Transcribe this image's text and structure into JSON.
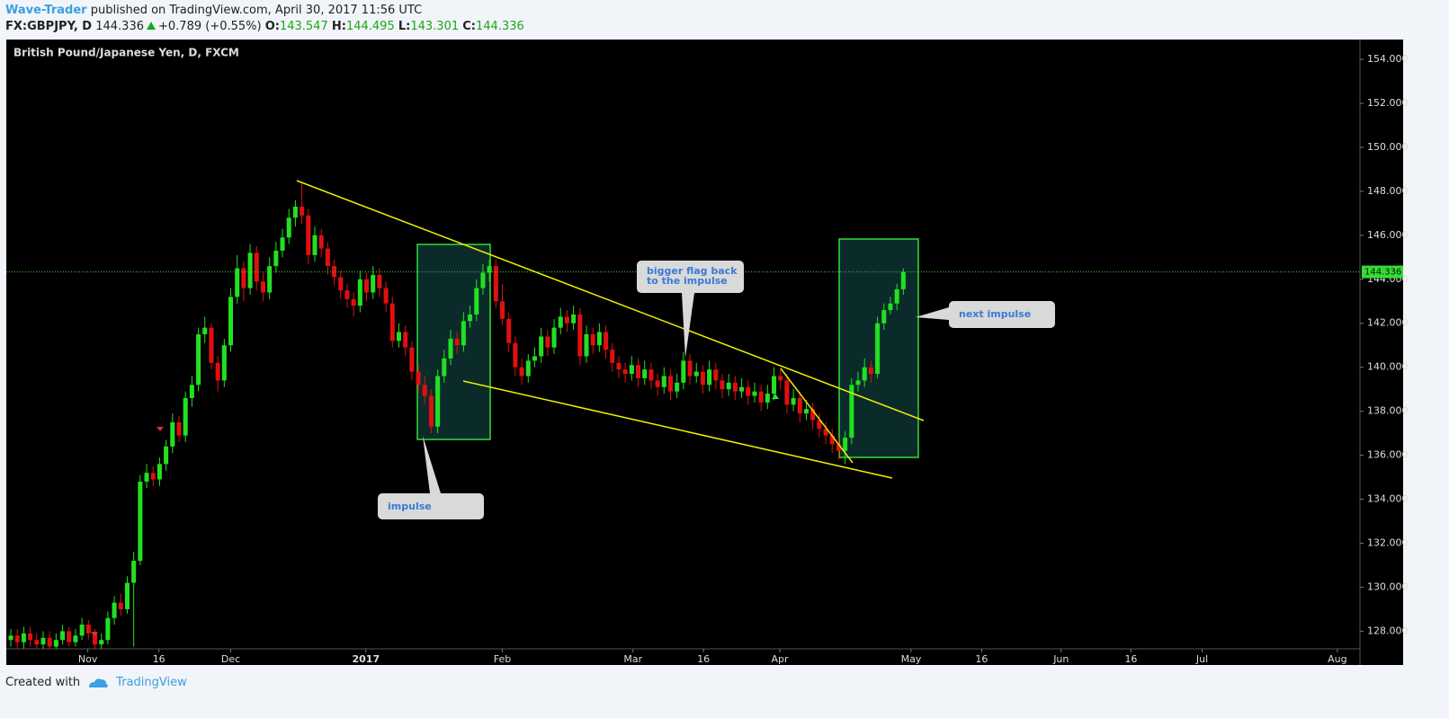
{
  "header": {
    "author": "Wave-Trader",
    "published": "published on TradingView.com, April 30, 2017 11:56 UTC",
    "symbol": "FX:GBPJPY, D",
    "change": "+0.789 (+0.55%)",
    "ohlc_labels": [
      "O:",
      "H:",
      "L:",
      "C:"
    ]
  },
  "footer": {
    "created": "Created with",
    "brand": "TradingView"
  },
  "chart_data": {
    "type": "candlestick",
    "title": "British Pound/Japanese Yen, D, FXCM",
    "up_color": "#22e022",
    "down_color": "#e01010",
    "last_price_color": "#33dd33",
    "xlim": [
      0,
      209.3
    ],
    "ylim": [
      127.2,
      154.9
    ],
    "xticks": [
      {
        "value": 12.6,
        "label": "Nov"
      },
      {
        "value": 23.6,
        "label": "16"
      },
      {
        "value": 34.7,
        "label": "Dec"
      },
      {
        "value": 55.6,
        "label": "2017"
      },
      {
        "value": 76.7,
        "label": "Feb"
      },
      {
        "value": 96.9,
        "label": "Mar"
      },
      {
        "value": 107.8,
        "label": "16"
      },
      {
        "value": 119.6,
        "label": "Apr"
      },
      {
        "value": 139.9,
        "label": "May"
      },
      {
        "value": 150.8,
        "label": "16"
      },
      {
        "value": 163.1,
        "label": "Jun"
      },
      {
        "value": 173.9,
        "label": "16"
      },
      {
        "value": 184.9,
        "label": "Jul"
      },
      {
        "value": 205.8,
        "label": "Aug"
      }
    ],
    "yticks": [
      {
        "value": 128,
        "label": "128.000"
      },
      {
        "value": 130,
        "label": "130.000"
      },
      {
        "value": 132,
        "label": "132.000"
      },
      {
        "value": 134,
        "label": "134.000"
      },
      {
        "value": 136,
        "label": "136.000"
      },
      {
        "value": 138,
        "label": "138.000"
      },
      {
        "value": 140,
        "label": "140.000"
      },
      {
        "value": 142,
        "label": "142.000"
      },
      {
        "value": 144,
        "label": "144.000"
      },
      {
        "value": 146,
        "label": "146.000"
      },
      {
        "value": 148,
        "label": "148.000"
      },
      {
        "value": 150,
        "label": "150.000"
      },
      {
        "value": 152,
        "label": "152.000"
      },
      {
        "value": 154,
        "label": "154.000"
      }
    ],
    "annotations": [
      "impulse",
      "bigger flag back",
      "to the impulse",
      "next impulse"
    ],
    "ohlc": [
      [
        127.6,
        128.1,
        127.3,
        127.8
      ],
      [
        127.8,
        128.1,
        127.2,
        127.5
      ],
      [
        127.5,
        128.2,
        127.2,
        127.9
      ],
      [
        127.9,
        128.2,
        127.3,
        127.6
      ],
      [
        127.6,
        127.9,
        127.2,
        127.4
      ],
      [
        127.4,
        128.0,
        127.2,
        127.7
      ],
      [
        127.7,
        128.0,
        127.2,
        127.3
      ],
      [
        127.3,
        127.9,
        127.2,
        127.6
      ],
      [
        127.6,
        128.3,
        127.4,
        128.0
      ],
      [
        128.0,
        128.2,
        127.3,
        127.5
      ],
      [
        127.5,
        128.1,
        127.3,
        127.8
      ],
      [
        127.8,
        128.6,
        127.6,
        128.3
      ],
      [
        128.3,
        128.5,
        127.6,
        127.9
      ],
      [
        127.9,
        128.1,
        127.2,
        127.4
      ],
      [
        127.4,
        127.9,
        127.2,
        127.6
      ],
      [
        127.6,
        128.9,
        127.4,
        128.6
      ],
      [
        128.6,
        129.6,
        128.3,
        129.3
      ],
      [
        129.3,
        129.7,
        128.7,
        129.0
      ],
      [
        129.0,
        130.5,
        128.8,
        130.2
      ],
      [
        130.2,
        131.6,
        127.3,
        131.2
      ],
      [
        131.2,
        135.1,
        131.0,
        134.8
      ],
      [
        134.8,
        135.6,
        134.5,
        135.2
      ],
      [
        135.2,
        135.5,
        134.6,
        134.9
      ],
      [
        134.9,
        135.9,
        134.6,
        135.6
      ],
      [
        135.6,
        136.7,
        135.3,
        136.4
      ],
      [
        136.4,
        137.9,
        136.1,
        137.5
      ],
      [
        137.5,
        137.8,
        136.6,
        136.9
      ],
      [
        136.9,
        138.9,
        136.6,
        138.6
      ],
      [
        138.6,
        139.6,
        138.2,
        139.2
      ],
      [
        139.2,
        141.8,
        138.9,
        141.5
      ],
      [
        141.5,
        142.3,
        141.1,
        141.8
      ],
      [
        141.8,
        142.0,
        139.9,
        140.2
      ],
      [
        140.2,
        140.5,
        138.9,
        139.4
      ],
      [
        139.4,
        141.3,
        139.1,
        141.0
      ],
      [
        141.0,
        143.6,
        140.7,
        143.2
      ],
      [
        143.2,
        145.1,
        142.9,
        144.5
      ],
      [
        144.5,
        144.8,
        143.0,
        143.6
      ],
      [
        143.6,
        145.6,
        143.3,
        145.2
      ],
      [
        145.2,
        145.5,
        143.5,
        143.9
      ],
      [
        143.9,
        144.3,
        143.0,
        143.4
      ],
      [
        143.4,
        145.0,
        143.1,
        144.6
      ],
      [
        144.6,
        145.7,
        144.3,
        145.3
      ],
      [
        145.3,
        146.3,
        145.0,
        145.9
      ],
      [
        145.9,
        147.2,
        145.6,
        146.8
      ],
      [
        146.8,
        147.6,
        146.4,
        147.3
      ],
      [
        147.3,
        148.4,
        146.5,
        146.9
      ],
      [
        146.9,
        147.2,
        144.7,
        145.1
      ],
      [
        145.1,
        146.4,
        144.8,
        146.0
      ],
      [
        146.0,
        146.3,
        145.0,
        145.4
      ],
      [
        145.4,
        145.7,
        144.2,
        144.6
      ],
      [
        144.6,
        144.9,
        143.7,
        144.1
      ],
      [
        144.1,
        144.4,
        143.1,
        143.5
      ],
      [
        143.5,
        143.8,
        142.7,
        143.1
      ],
      [
        143.1,
        143.4,
        142.3,
        142.8
      ],
      [
        142.8,
        144.4,
        142.5,
        144.0
      ],
      [
        144.0,
        144.3,
        143.0,
        143.4
      ],
      [
        143.4,
        144.6,
        143.1,
        144.2
      ],
      [
        144.2,
        144.5,
        143.2,
        143.6
      ],
      [
        143.6,
        143.9,
        142.5,
        142.9
      ],
      [
        142.9,
        143.2,
        140.9,
        141.2
      ],
      [
        141.2,
        142.0,
        140.9,
        141.6
      ],
      [
        141.6,
        141.9,
        140.5,
        140.9
      ],
      [
        140.9,
        141.2,
        139.4,
        139.8
      ],
      [
        139.8,
        140.1,
        138.8,
        139.2
      ],
      [
        139.2,
        139.6,
        138.3,
        138.7
      ],
      [
        138.7,
        139.0,
        137.0,
        137.3
      ],
      [
        137.3,
        139.9,
        137.0,
        139.6
      ],
      [
        139.6,
        140.8,
        139.3,
        140.4
      ],
      [
        140.4,
        141.7,
        140.1,
        141.3
      ],
      [
        141.3,
        141.6,
        140.6,
        141.0
      ],
      [
        141.0,
        142.5,
        140.7,
        142.1
      ],
      [
        142.1,
        142.8,
        141.8,
        142.4
      ],
      [
        142.4,
        144.0,
        142.1,
        143.6
      ],
      [
        143.6,
        144.7,
        143.3,
        144.3
      ],
      [
        144.3,
        144.9,
        143.9,
        144.6
      ],
      [
        144.6,
        144.9,
        142.7,
        143.0
      ],
      [
        143.0,
        143.8,
        141.9,
        142.2
      ],
      [
        142.2,
        142.5,
        140.7,
        141.1
      ],
      [
        141.1,
        141.4,
        139.6,
        140.0
      ],
      [
        140.0,
        140.4,
        139.2,
        139.6
      ],
      [
        139.6,
        140.6,
        139.3,
        140.3
      ],
      [
        140.3,
        140.9,
        140.0,
        140.5
      ],
      [
        140.5,
        141.8,
        140.2,
        141.4
      ],
      [
        141.4,
        141.7,
        140.5,
        140.9
      ],
      [
        140.9,
        142.2,
        140.6,
        141.8
      ],
      [
        141.8,
        142.7,
        141.5,
        142.3
      ],
      [
        142.3,
        142.6,
        141.6,
        142.0
      ],
      [
        142.0,
        142.8,
        141.7,
        142.4
      ],
      [
        142.4,
        142.7,
        140.1,
        140.5
      ],
      [
        140.5,
        141.9,
        140.2,
        141.5
      ],
      [
        141.5,
        141.8,
        140.6,
        141.0
      ],
      [
        141.0,
        142.0,
        140.7,
        141.6
      ],
      [
        141.6,
        141.9,
        140.4,
        140.8
      ],
      [
        140.8,
        141.1,
        139.8,
        140.2
      ],
      [
        140.2,
        140.5,
        139.5,
        139.9
      ],
      [
        139.9,
        140.2,
        139.3,
        139.7
      ],
      [
        139.7,
        140.5,
        139.4,
        140.1
      ],
      [
        140.1,
        140.4,
        139.1,
        139.5
      ],
      [
        139.5,
        140.3,
        139.2,
        139.9
      ],
      [
        139.9,
        140.2,
        139.0,
        139.4
      ],
      [
        139.4,
        139.7,
        138.7,
        139.1
      ],
      [
        139.1,
        140.0,
        138.8,
        139.6
      ],
      [
        139.6,
        139.9,
        138.5,
        138.9
      ],
      [
        138.9,
        139.7,
        138.6,
        139.3
      ],
      [
        139.3,
        140.7,
        139.0,
        140.3
      ],
      [
        140.3,
        140.6,
        139.2,
        139.6
      ],
      [
        139.6,
        140.2,
        139.3,
        139.8
      ],
      [
        139.8,
        140.1,
        138.8,
        139.2
      ],
      [
        139.2,
        140.3,
        138.9,
        139.9
      ],
      [
        139.9,
        140.2,
        139.0,
        139.4
      ],
      [
        139.4,
        139.7,
        138.6,
        139.0
      ],
      [
        139.0,
        139.7,
        138.7,
        139.3
      ],
      [
        139.3,
        139.6,
        138.5,
        138.9
      ],
      [
        138.9,
        139.5,
        138.6,
        139.1
      ],
      [
        139.1,
        139.4,
        138.3,
        138.7
      ],
      [
        138.7,
        139.3,
        138.4,
        138.9
      ],
      [
        138.9,
        139.2,
        138.0,
        138.4
      ],
      [
        138.4,
        139.2,
        138.1,
        138.8
      ],
      [
        138.8,
        140.0,
        138.5,
        139.6
      ],
      [
        139.6,
        139.9,
        139.0,
        139.4
      ],
      [
        139.4,
        139.7,
        137.9,
        138.3
      ],
      [
        138.3,
        139.0,
        138.0,
        138.6
      ],
      [
        138.6,
        138.9,
        137.5,
        137.9
      ],
      [
        137.9,
        138.5,
        137.6,
        138.1
      ],
      [
        138.1,
        138.4,
        137.2,
        137.6
      ],
      [
        137.6,
        137.9,
        136.8,
        137.2
      ],
      [
        137.2,
        137.5,
        136.5,
        136.9
      ],
      [
        136.9,
        137.2,
        136.1,
        136.5
      ],
      [
        136.5,
        136.8,
        135.8,
        136.2
      ],
      [
        136.2,
        137.1,
        135.6,
        136.8
      ],
      [
        136.8,
        139.5,
        136.5,
        139.2
      ],
      [
        139.2,
        139.8,
        138.9,
        139.4
      ],
      [
        139.4,
        140.4,
        139.1,
        140.0
      ],
      [
        140.0,
        140.3,
        139.3,
        139.7
      ],
      [
        139.7,
        142.3,
        139.5,
        142.0
      ],
      [
        142.0,
        142.9,
        141.7,
        142.6
      ],
      [
        142.6,
        143.2,
        142.4,
        142.9
      ],
      [
        142.9,
        143.8,
        142.6,
        143.547
      ],
      [
        143.547,
        144.495,
        143.301,
        144.336
      ]
    ]
  }
}
